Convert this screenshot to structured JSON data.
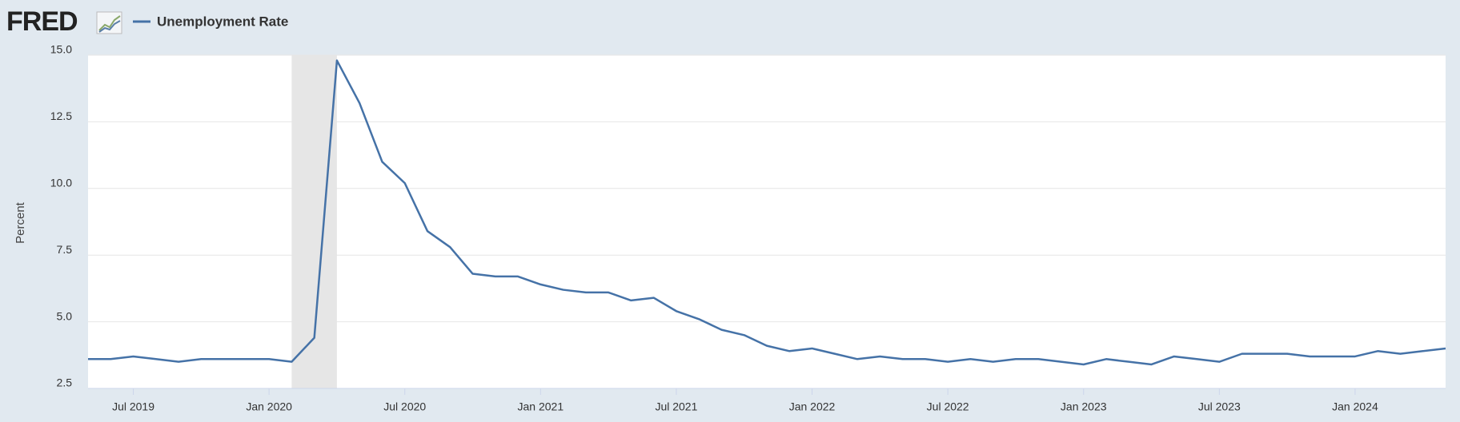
{
  "chart_data": {
    "type": "line",
    "logo": "FRED",
    "y_label": "Percent",
    "x": [
      "2019-05",
      "2019-06",
      "2019-07",
      "2019-08",
      "2019-09",
      "2019-10",
      "2019-11",
      "2019-12",
      "2020-01",
      "2020-02",
      "2020-03",
      "2020-04",
      "2020-05",
      "2020-06",
      "2020-07",
      "2020-08",
      "2020-09",
      "2020-10",
      "2020-11",
      "2020-12",
      "2021-01",
      "2021-02",
      "2021-03",
      "2021-04",
      "2021-05",
      "2021-06",
      "2021-07",
      "2021-08",
      "2021-09",
      "2021-10",
      "2021-11",
      "2021-12",
      "2022-01",
      "2022-02",
      "2022-03",
      "2022-04",
      "2022-05",
      "2022-06",
      "2022-07",
      "2022-08",
      "2022-09",
      "2022-10",
      "2022-11",
      "2022-12",
      "2023-01",
      "2023-02",
      "2023-03",
      "2023-04",
      "2023-05",
      "2023-06",
      "2023-07",
      "2023-08",
      "2023-09",
      "2023-10",
      "2023-11",
      "2023-12",
      "2024-01",
      "2024-02",
      "2024-03",
      "2024-04",
      "2024-05"
    ],
    "series": [
      {
        "name": "Unemployment Rate",
        "color": "#4572a7",
        "values": [
          3.6,
          3.6,
          3.7,
          3.6,
          3.5,
          3.6,
          3.6,
          3.6,
          3.6,
          3.5,
          4.4,
          14.8,
          13.2,
          11.0,
          10.2,
          8.4,
          7.8,
          6.8,
          6.7,
          6.7,
          6.4,
          6.2,
          6.1,
          6.1,
          5.8,
          5.9,
          5.4,
          5.1,
          4.7,
          4.5,
          4.1,
          3.9,
          4.0,
          3.8,
          3.6,
          3.7,
          3.6,
          3.6,
          3.5,
          3.6,
          3.5,
          3.6,
          3.6,
          3.5,
          3.4,
          3.6,
          3.5,
          3.4,
          3.7,
          3.6,
          3.5,
          3.8,
          3.8,
          3.8,
          3.7,
          3.7,
          3.7,
          3.9,
          3.8,
          3.9,
          4.0
        ]
      }
    ],
    "xlim": [
      "2019-05",
      "2024-05"
    ],
    "xticks": [
      {
        "value": "2019-07",
        "label": "Jul 2019"
      },
      {
        "value": "2020-01",
        "label": "Jan 2020"
      },
      {
        "value": "2020-07",
        "label": "Jul 2020"
      },
      {
        "value": "2021-01",
        "label": "Jan 2021"
      },
      {
        "value": "2021-07",
        "label": "Jul 2021"
      },
      {
        "value": "2022-01",
        "label": "Jan 2022"
      },
      {
        "value": "2022-07",
        "label": "Jul 2022"
      },
      {
        "value": "2023-01",
        "label": "Jan 2023"
      },
      {
        "value": "2023-07",
        "label": "Jul 2023"
      },
      {
        "value": "2024-01",
        "label": "Jan 2024"
      }
    ],
    "ylim": [
      2.5,
      15
    ],
    "yticks": [
      2.5,
      {
        "value": 5,
        "label": "5.0"
      },
      7.5,
      {
        "value": 10,
        "label": "10.0"
      },
      12.5,
      {
        "value": 15,
        "label": "15.0"
      }
    ],
    "grid": true,
    "shaded_regions": [
      {
        "start": "2020-02",
        "end": "2020-04",
        "color": "#e6e6e6"
      }
    ]
  }
}
